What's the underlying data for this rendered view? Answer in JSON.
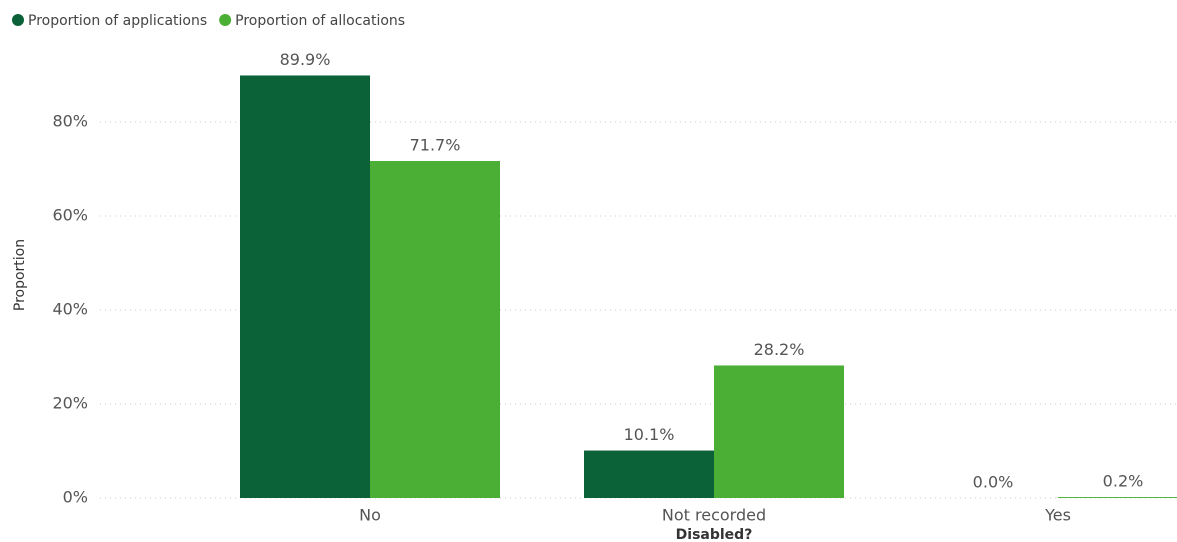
{
  "chart_data": {
    "type": "bar",
    "x_label": "Disabled?",
    "y_label": "Proportion",
    "categories": [
      "No",
      "Not recorded",
      "Yes"
    ],
    "series": [
      {
        "name": "Proportion of applications",
        "color": "#0b6138",
        "values": [
          89.9,
          10.1,
          0.0
        ],
        "value_labels": [
          "89.9%",
          "10.1%",
          "0.0%"
        ]
      },
      {
        "name": "Proportion of allocations",
        "color": "#4caf35",
        "values": [
          71.7,
          28.2,
          0.2
        ],
        "value_labels": [
          "71.7%",
          "28.2%",
          "0.2%"
        ]
      }
    ],
    "ylim": [
      0,
      95
    ],
    "yticks": [
      {
        "value": 0,
        "label": "0%"
      },
      {
        "value": 20,
        "label": "20%"
      },
      {
        "value": 40,
        "label": "40%"
      },
      {
        "value": 60,
        "label": "60%"
      },
      {
        "value": 80,
        "label": "80%"
      }
    ],
    "grid": true,
    "legend": "top-left"
  }
}
